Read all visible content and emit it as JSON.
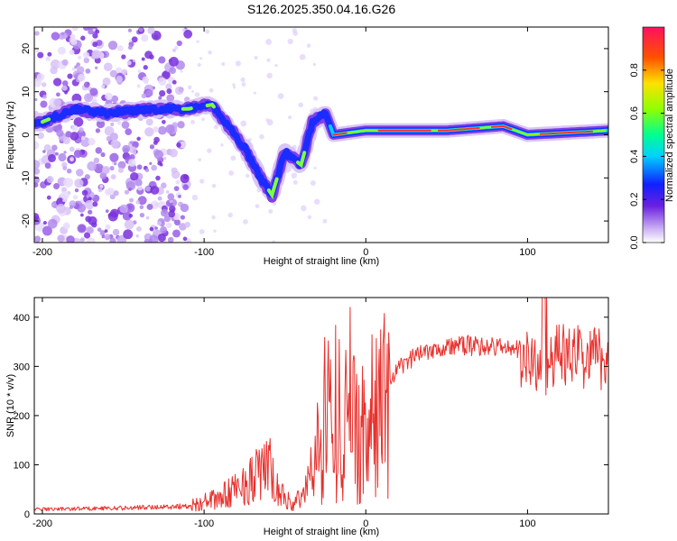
{
  "chart_data": [
    {
      "type": "heatmap",
      "title": "S126.2025.350.04.16.G26",
      "xlabel": "Height of straight line (km)",
      "ylabel": "Frequency (Hz)",
      "xlim": [
        -205,
        150
      ],
      "ylim": [
        -25,
        25
      ],
      "xticks": [
        -200,
        -100,
        0,
        100
      ],
      "yticks": [
        20,
        10,
        0,
        -10,
        -20
      ],
      "colorbar": {
        "label": "Normalized spectral amplitude",
        "range": [
          0.0,
          1.0
        ],
        "ticks": [
          "0.0",
          "0.2",
          "0.4",
          "0.6",
          "0.8"
        ]
      },
      "ridge": {
        "description_points": [
          {
            "x": -200,
            "y": 3
          },
          {
            "x": -180,
            "y": 6
          },
          {
            "x": -160,
            "y": 5
          },
          {
            "x": -130,
            "y": 6
          },
          {
            "x": -110,
            "y": 6
          },
          {
            "x": -95,
            "y": 7
          },
          {
            "x": -85,
            "y": 2
          },
          {
            "x": -75,
            "y": -3
          },
          {
            "x": -65,
            "y": -10
          },
          {
            "x": -58,
            "y": -14
          },
          {
            "x": -50,
            "y": -4
          },
          {
            "x": -40,
            "y": -7
          },
          {
            "x": -33,
            "y": 3
          },
          {
            "x": -25,
            "y": 5
          },
          {
            "x": -20,
            "y": 0
          },
          {
            "x": 0,
            "y": 1
          },
          {
            "x": 50,
            "y": 1
          },
          {
            "x": 85,
            "y": 2
          },
          {
            "x": 100,
            "y": 0
          },
          {
            "x": 150,
            "y": 1
          }
        ]
      }
    },
    {
      "type": "line",
      "xlabel": "Height of straight line (km)",
      "ylabel": "SNR (10 * v/v)",
      "xlim": [
        -205,
        150
      ],
      "ylim": [
        0,
        440
      ],
      "xticks": [
        -200,
        -100,
        0,
        100
      ],
      "yticks": [
        0,
        100,
        200,
        300,
        400
      ],
      "series": [
        {
          "name": "SNR",
          "color": "#e8302c",
          "envelope_points": [
            {
              "x": -205,
              "y": 12
            },
            {
              "x": -150,
              "y": 15
            },
            {
              "x": -110,
              "y": 20
            },
            {
              "x": -90,
              "y": 40
            },
            {
              "x": -70,
              "y": 90
            },
            {
              "x": -60,
              "y": 120
            },
            {
              "x": -55,
              "y": 60
            },
            {
              "x": -45,
              "y": 20
            },
            {
              "x": -38,
              "y": 60
            },
            {
              "x": -30,
              "y": 140
            },
            {
              "x": -25,
              "y": 230
            },
            {
              "x": -18,
              "y": 220
            },
            {
              "x": -10,
              "y": 190
            },
            {
              "x": 0,
              "y": 180
            },
            {
              "x": 10,
              "y": 240
            },
            {
              "x": 20,
              "y": 300
            },
            {
              "x": 35,
              "y": 340
            },
            {
              "x": 60,
              "y": 350
            },
            {
              "x": 90,
              "y": 345
            },
            {
              "x": 105,
              "y": 320
            },
            {
              "x": 115,
              "y": 340
            },
            {
              "x": 150,
              "y": 335
            }
          ]
        }
      ]
    }
  ]
}
